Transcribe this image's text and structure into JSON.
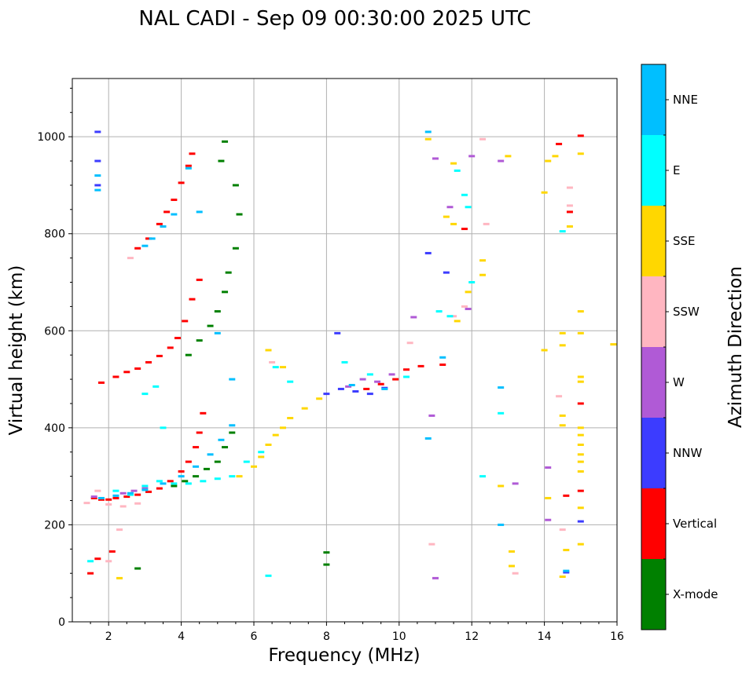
{
  "chart_data": {
    "type": "scatter",
    "title": "NAL CADI - Sep 09 00:30:00 2025 UTC",
    "xlabel": "Frequency (MHz)",
    "ylabel": "Virtual height (km)",
    "xlim": [
      1,
      16
    ],
    "ylim": [
      0,
      1120
    ],
    "xticks": [
      2,
      4,
      6,
      8,
      10,
      12,
      14,
      16
    ],
    "yticks": [
      0,
      200,
      400,
      600,
      800,
      1000
    ],
    "grid": true,
    "colorbar": {
      "label": "Azimuth Direction",
      "categories": [
        {
          "name": "X-mode",
          "color": "#008000"
        },
        {
          "name": "Vertical",
          "color": "#ff0000"
        },
        {
          "name": "NNW",
          "color": "#3c3cff"
        },
        {
          "name": "W",
          "color": "#b05ad6"
        },
        {
          "name": "SSW",
          "color": "#ffb6c1"
        },
        {
          "name": "SSE",
          "color": "#ffd700"
        },
        {
          "name": "E",
          "color": "#00ffff"
        },
        {
          "name": "NNE",
          "color": "#00bfff"
        }
      ]
    },
    "series": [
      {
        "name": "Vertical",
        "points": [
          [
            1.6,
            255
          ],
          [
            1.8,
            252
          ],
          [
            2.0,
            252
          ],
          [
            2.2,
            255
          ],
          [
            2.5,
            258
          ],
          [
            2.8,
            262
          ],
          [
            3.1,
            268
          ],
          [
            3.4,
            275
          ],
          [
            3.7,
            290
          ],
          [
            4.0,
            310
          ],
          [
            4.2,
            330
          ],
          [
            4.4,
            360
          ],
          [
            4.5,
            390
          ],
          [
            4.6,
            430
          ],
          [
            1.8,
            493
          ],
          [
            2.2,
            505
          ],
          [
            2.5,
            515
          ],
          [
            2.8,
            522
          ],
          [
            3.1,
            535
          ],
          [
            3.4,
            548
          ],
          [
            3.7,
            565
          ],
          [
            3.9,
            585
          ],
          [
            4.1,
            620
          ],
          [
            4.3,
            665
          ],
          [
            4.5,
            705
          ],
          [
            2.8,
            770
          ],
          [
            3.1,
            790
          ],
          [
            3.4,
            820
          ],
          [
            3.6,
            845
          ],
          [
            3.8,
            870
          ],
          [
            4.0,
            905
          ],
          [
            4.2,
            940
          ],
          [
            4.3,
            965
          ],
          [
            1.5,
            100
          ],
          [
            1.7,
            130
          ],
          [
            2.1,
            145
          ],
          [
            9.1,
            480
          ],
          [
            9.5,
            490
          ],
          [
            9.9,
            500
          ],
          [
            10.2,
            520
          ],
          [
            10.6,
            527
          ],
          [
            11.2,
            530
          ],
          [
            11.8,
            810
          ],
          [
            14.4,
            985
          ],
          [
            14.7,
            845
          ],
          [
            15.0,
            1002
          ],
          [
            15.0,
            450
          ],
          [
            15.0,
            270
          ],
          [
            14.6,
            260
          ]
        ]
      },
      {
        "name": "X-mode",
        "points": [
          [
            3.8,
            280
          ],
          [
            4.1,
            290
          ],
          [
            4.4,
            300
          ],
          [
            4.7,
            315
          ],
          [
            5.0,
            330
          ],
          [
            5.2,
            360
          ],
          [
            5.4,
            390
          ],
          [
            4.2,
            550
          ],
          [
            4.5,
            580
          ],
          [
            4.8,
            610
          ],
          [
            5.0,
            640
          ],
          [
            5.2,
            680
          ],
          [
            5.3,
            720
          ],
          [
            5.5,
            770
          ],
          [
            5.6,
            840
          ],
          [
            5.5,
            900
          ],
          [
            5.1,
            950
          ],
          [
            5.2,
            990
          ],
          [
            2.8,
            110
          ],
          [
            8.0,
            118
          ],
          [
            8.0,
            143
          ]
        ]
      },
      {
        "name": "NNW",
        "points": [
          [
            1.7,
            900
          ],
          [
            1.7,
            950
          ],
          [
            1.7,
            1010
          ],
          [
            8.0,
            470
          ],
          [
            8.4,
            480
          ],
          [
            8.8,
            475
          ],
          [
            9.2,
            470
          ],
          [
            9.6,
            482
          ],
          [
            10.8,
            760
          ],
          [
            11.3,
            720
          ],
          [
            15.0,
            207
          ],
          [
            14.6,
            102
          ],
          [
            8.3,
            595
          ]
        ]
      },
      {
        "name": "W",
        "points": [
          [
            2.4,
            265
          ],
          [
            2.7,
            270
          ],
          [
            3.0,
            275
          ],
          [
            1.6,
            258
          ],
          [
            8.6,
            485
          ],
          [
            9.0,
            500
          ],
          [
            9.4,
            495
          ],
          [
            9.8,
            510
          ],
          [
            10.4,
            628
          ],
          [
            11.9,
            645
          ],
          [
            12.8,
            950
          ],
          [
            14.1,
            210
          ],
          [
            14.1,
            318
          ],
          [
            13.2,
            285
          ],
          [
            11.0,
            955
          ],
          [
            11.4,
            855
          ],
          [
            12.0,
            960
          ],
          [
            10.9,
            425
          ],
          [
            11.0,
            90
          ]
        ]
      },
      {
        "name": "SSW",
        "points": [
          [
            1.4,
            245
          ],
          [
            1.7,
            270
          ],
          [
            2.0,
            242
          ],
          [
            2.4,
            238
          ],
          [
            2.8,
            244
          ],
          [
            2.0,
            125
          ],
          [
            2.3,
            190
          ],
          [
            2.6,
            750
          ],
          [
            6.5,
            535
          ],
          [
            10.3,
            575
          ],
          [
            11.5,
            630
          ],
          [
            12.3,
            995
          ],
          [
            12.4,
            820
          ],
          [
            13.2,
            100
          ],
          [
            14.7,
            895
          ],
          [
            14.7,
            858
          ],
          [
            14.4,
            465
          ],
          [
            14.5,
            190
          ],
          [
            10.9,
            160
          ],
          [
            11.8,
            650
          ]
        ]
      },
      {
        "name": "SSE",
        "points": [
          [
            5.6,
            300
          ],
          [
            6.0,
            320
          ],
          [
            6.2,
            340
          ],
          [
            6.4,
            365
          ],
          [
            6.6,
            385
          ],
          [
            6.8,
            400
          ],
          [
            7.0,
            420
          ],
          [
            7.4,
            440
          ],
          [
            7.8,
            460
          ],
          [
            6.4,
            560
          ],
          [
            6.8,
            525
          ],
          [
            2.3,
            90
          ],
          [
            12.3,
            745
          ],
          [
            12.3,
            715
          ],
          [
            11.9,
            680
          ],
          [
            11.6,
            620
          ],
          [
            12.8,
            280
          ],
          [
            13.1,
            145
          ],
          [
            13.1,
            115
          ],
          [
            13.0,
            960
          ],
          [
            14.3,
            960
          ],
          [
            14.1,
            950
          ],
          [
            14.0,
            885
          ],
          [
            14.0,
            560
          ],
          [
            14.1,
            255
          ],
          [
            14.5,
            425
          ],
          [
            14.5,
            405
          ],
          [
            14.5,
            595
          ],
          [
            14.5,
            570
          ],
          [
            15.0,
            640
          ],
          [
            15.0,
            595
          ],
          [
            15.0,
            505
          ],
          [
            15.0,
            495
          ],
          [
            15.0,
            400
          ],
          [
            15.0,
            385
          ],
          [
            15.0,
            365
          ],
          [
            15.0,
            345
          ],
          [
            15.0,
            330
          ],
          [
            15.0,
            310
          ],
          [
            15.0,
            235
          ],
          [
            15.0,
            160
          ],
          [
            14.7,
            815
          ],
          [
            15.0,
            965
          ],
          [
            15.9,
            572
          ],
          [
            10.8,
            995
          ],
          [
            11.5,
            945
          ],
          [
            11.3,
            835
          ],
          [
            11.5,
            820
          ],
          [
            14.6,
            148
          ],
          [
            14.5,
            93
          ]
        ]
      },
      {
        "name": "E",
        "points": [
          [
            2.2,
            270
          ],
          [
            2.6,
            262
          ],
          [
            3.0,
            280
          ],
          [
            3.4,
            290
          ],
          [
            3.8,
            285
          ],
          [
            4.2,
            285
          ],
          [
            4.6,
            290
          ],
          [
            5.0,
            295
          ],
          [
            5.4,
            300
          ],
          [
            5.8,
            330
          ],
          [
            6.2,
            350
          ],
          [
            3.0,
            470
          ],
          [
            3.3,
            485
          ],
          [
            3.5,
            400
          ],
          [
            6.6,
            525
          ],
          [
            7.0,
            495
          ],
          [
            8.5,
            535
          ],
          [
            9.2,
            510
          ],
          [
            10.2,
            505
          ],
          [
            11.6,
            930
          ],
          [
            11.8,
            880
          ],
          [
            11.9,
            855
          ],
          [
            12.0,
            700
          ],
          [
            12.8,
            430
          ],
          [
            12.3,
            300
          ],
          [
            14.5,
            805
          ],
          [
            1.5,
            125
          ],
          [
            6.4,
            95
          ],
          [
            11.1,
            640
          ],
          [
            11.4,
            630
          ]
        ]
      },
      {
        "name": "NNE",
        "points": [
          [
            1.8,
            255
          ],
          [
            2.2,
            260
          ],
          [
            2.6,
            265
          ],
          [
            3.0,
            272
          ],
          [
            3.5,
            285
          ],
          [
            4.0,
            300
          ],
          [
            4.4,
            320
          ],
          [
            4.8,
            345
          ],
          [
            5.1,
            375
          ],
          [
            5.4,
            405
          ],
          [
            3.0,
            775
          ],
          [
            3.2,
            790
          ],
          [
            3.5,
            815
          ],
          [
            3.8,
            840
          ],
          [
            4.2,
            935
          ],
          [
            4.5,
            845
          ],
          [
            5.0,
            595
          ],
          [
            5.4,
            500
          ],
          [
            1.7,
            920
          ],
          [
            1.7,
            890
          ],
          [
            8.7,
            488
          ],
          [
            9.6,
            480
          ],
          [
            12.8,
            200
          ],
          [
            12.8,
            483
          ],
          [
            14.6,
            105
          ],
          [
            10.8,
            1010
          ],
          [
            11.2,
            545
          ],
          [
            10.8,
            378
          ]
        ]
      }
    ]
  }
}
